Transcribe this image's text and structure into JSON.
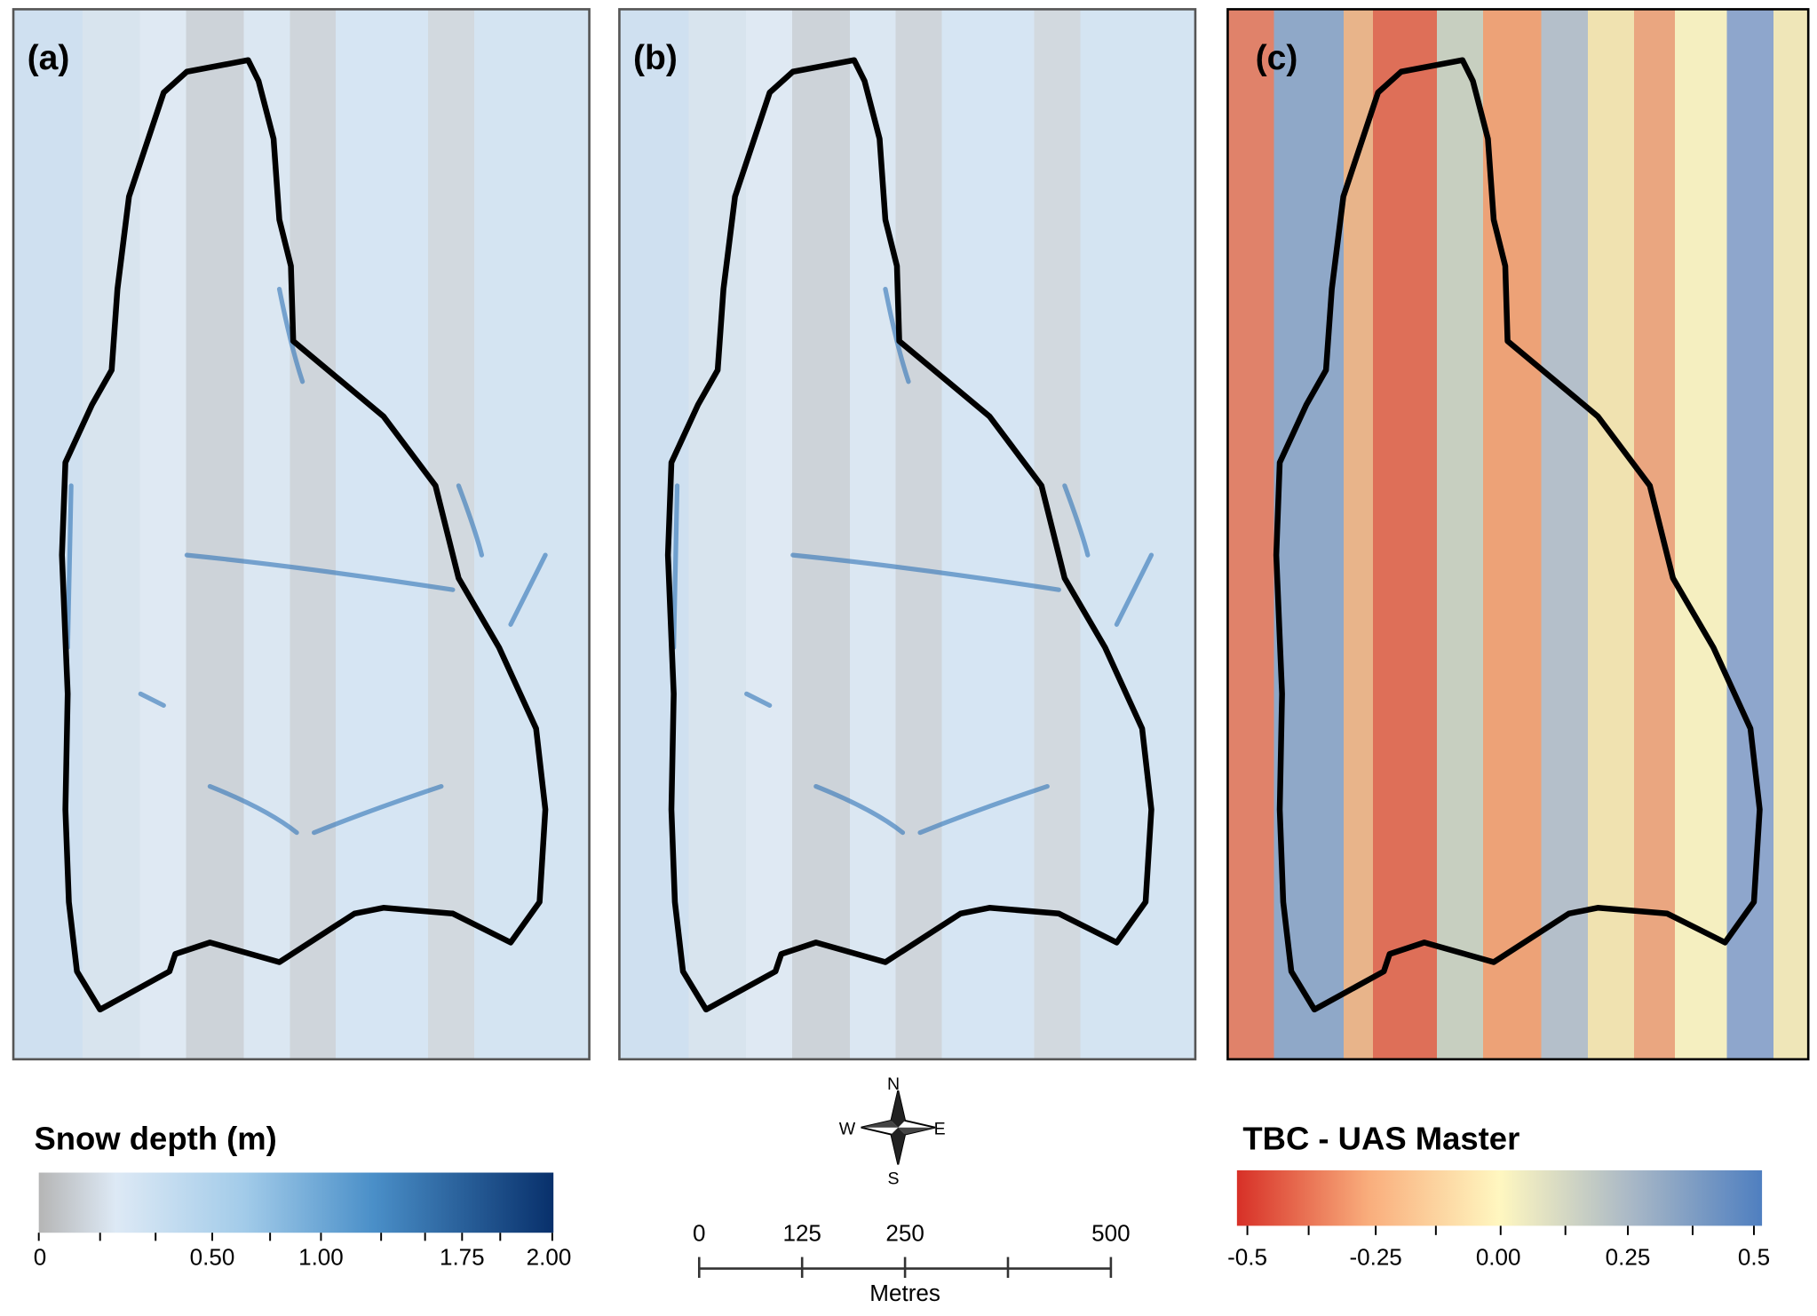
{
  "panels": [
    {
      "label": "(a)"
    },
    {
      "label": "(b)"
    },
    {
      "label": "(c)"
    }
  ],
  "snow_depth_legend": {
    "title": "Snow depth (m)",
    "ticks": [
      "0",
      "0.50",
      "1.00",
      "1.75",
      "2.00"
    ]
  },
  "difference_legend": {
    "title": "TBC - UAS Master",
    "ticks": [
      "-0.5",
      "-0.25",
      "0.00",
      "0.25",
      "0.5"
    ]
  },
  "compass": {
    "north": "N",
    "west": "W",
    "east": "E",
    "south": "S"
  },
  "scale_bar": {
    "ticks": [
      "0",
      "125",
      "250",
      "500"
    ],
    "unit": "Metres"
  }
}
